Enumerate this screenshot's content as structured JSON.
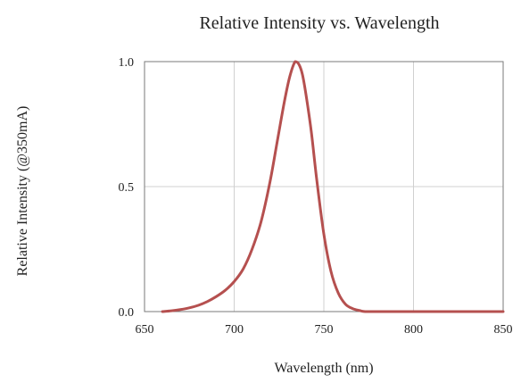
{
  "chart_data": {
    "type": "line",
    "title": "Relative Intensity vs. Wavelength",
    "xlabel": "Wavelength (nm)",
    "ylabel": "Relative Intensity (@350mA)",
    "xlim": [
      650,
      850
    ],
    "ylim": [
      0,
      1.0
    ],
    "x_ticks": [
      "650",
      "700",
      "750",
      "800",
      "850"
    ],
    "y_ticks": [
      "0.0",
      "0.5",
      "1.0"
    ],
    "grid": true,
    "line_color": "#b5504f",
    "series": [
      {
        "x": [
          660,
          665,
          670,
          675,
          680,
          685,
          690,
          695,
          700,
          705,
          710,
          715,
          720,
          724,
          728,
          731,
          734,
          736,
          738,
          740,
          743,
          746,
          750,
          754,
          758,
          762,
          766,
          770,
          773,
          780,
          800,
          850
        ],
        "y": [
          0.0,
          0.003,
          0.008,
          0.015,
          0.025,
          0.04,
          0.06,
          0.085,
          0.12,
          0.17,
          0.25,
          0.36,
          0.52,
          0.68,
          0.84,
          0.94,
          1.0,
          0.99,
          0.95,
          0.87,
          0.72,
          0.53,
          0.31,
          0.16,
          0.075,
          0.03,
          0.012,
          0.004,
          0.0,
          0.0,
          0.0,
          0.0
        ]
      }
    ]
  }
}
